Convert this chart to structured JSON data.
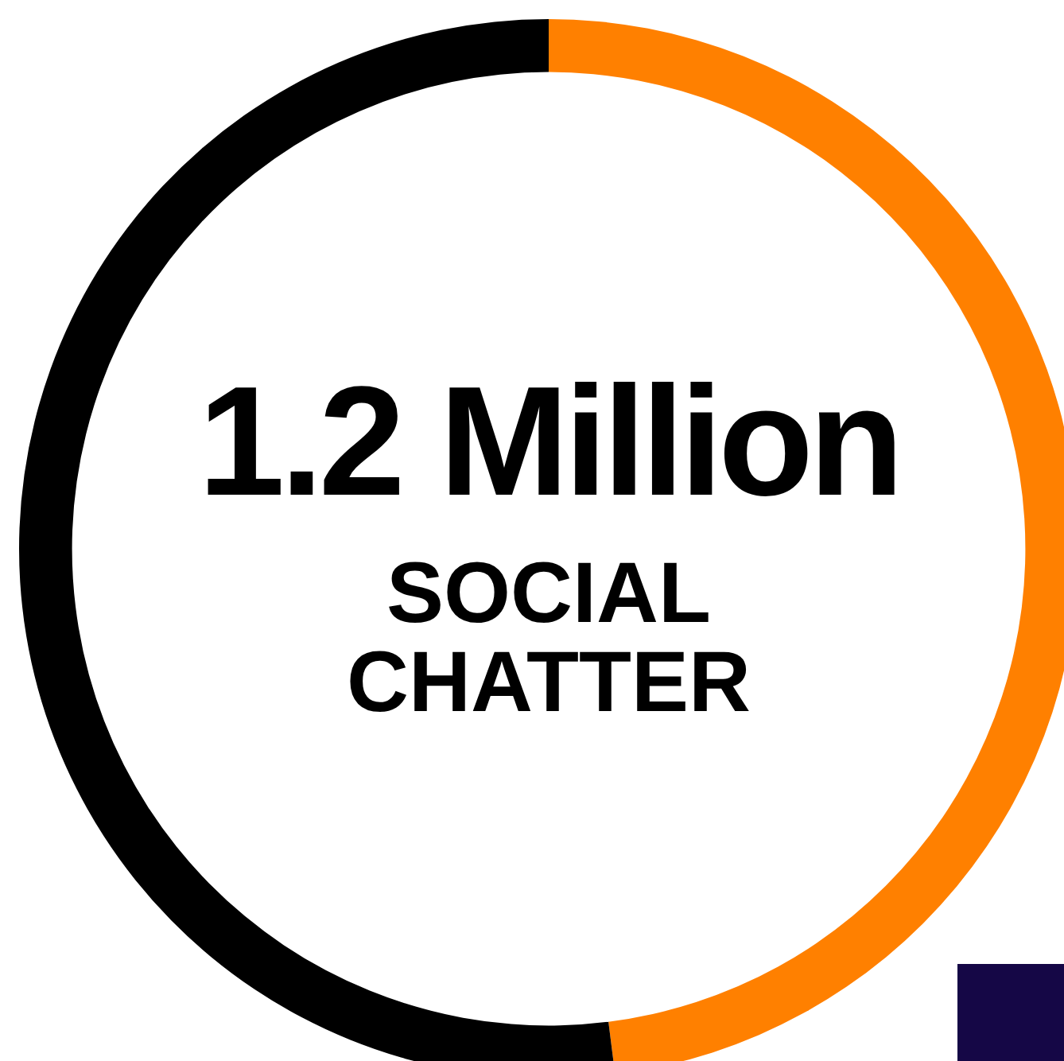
{
  "chart_data": {
    "type": "donut",
    "title": "1.2 Million",
    "subtitle": "SOCIAL CHATTER",
    "categories": [
      null,
      null
    ],
    "values": [
      48,
      52
    ],
    "colors": [
      "#ff8000",
      "#000000"
    ]
  }
}
